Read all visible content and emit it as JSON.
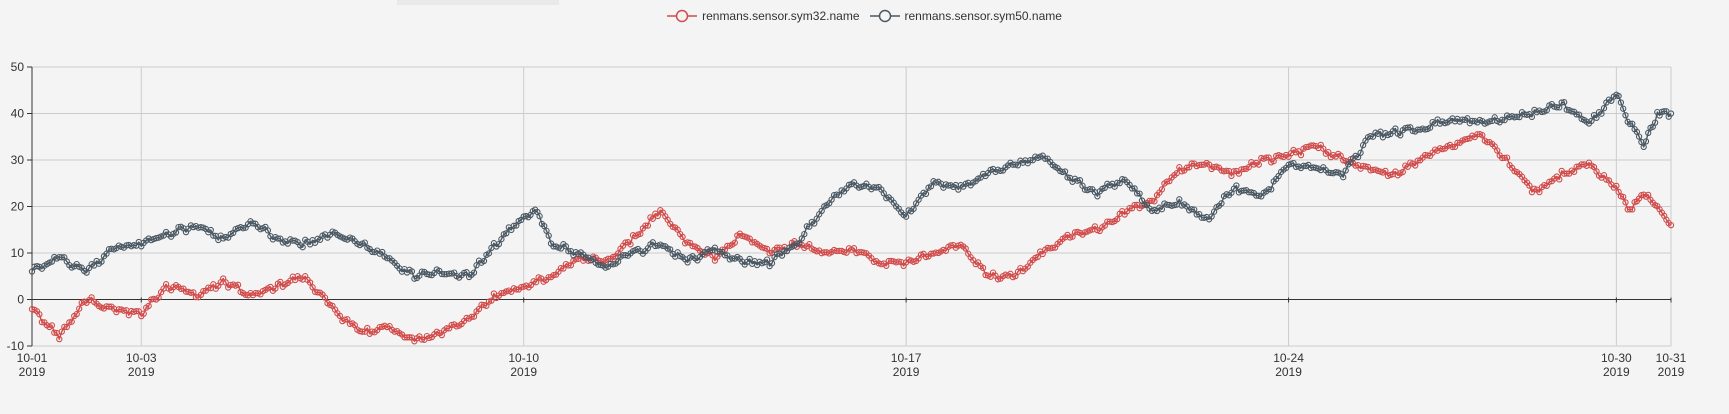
{
  "chart_data": {
    "type": "line",
    "title": "",
    "xlabel": "",
    "ylabel": "",
    "ylim": [
      -10,
      50
    ],
    "y_ticks": [
      "-10",
      "0",
      "10",
      "20",
      "30",
      "40",
      "50"
    ],
    "x_range": [
      "2019-10-01",
      "2019-10-31"
    ],
    "x_ticks": [
      {
        "date": "2019-10-01",
        "label": "10-01",
        "year": "2019"
      },
      {
        "date": "2019-10-03",
        "label": "10-03",
        "year": "2019"
      },
      {
        "date": "2019-10-10",
        "label": "10-10",
        "year": "2019"
      },
      {
        "date": "2019-10-17",
        "label": "10-17",
        "year": "2019"
      },
      {
        "date": "2019-10-24",
        "label": "10-24",
        "year": "2019"
      },
      {
        "date": "2019-10-30",
        "label": "10-30",
        "year": "2019"
      },
      {
        "date": "2019-10-31",
        "label": "10-31",
        "year": "2019"
      }
    ],
    "grid": true,
    "legend_position": "top-center",
    "series": [
      {
        "name": "renmans.sensor.sym32.name",
        "color": "#d14a4a",
        "marker": "circle",
        "points": [
          [
            "2019-10-01",
            -2
          ],
          [
            "2019-10-01T12",
            -8
          ],
          [
            "2019-10-02",
            0
          ],
          [
            "2019-10-02T12",
            -2
          ],
          [
            "2019-10-03",
            -3
          ],
          [
            "2019-10-03T12",
            3
          ],
          [
            "2019-10-04",
            1
          ],
          [
            "2019-10-04T12",
            4
          ],
          [
            "2019-10-05",
            1
          ],
          [
            "2019-10-05T12",
            3
          ],
          [
            "2019-10-06",
            5
          ],
          [
            "2019-10-06T12",
            -2
          ],
          [
            "2019-10-07",
            -7
          ],
          [
            "2019-10-07T12",
            -6
          ],
          [
            "2019-10-08",
            -9
          ],
          [
            "2019-10-08T12",
            -7
          ],
          [
            "2019-10-09",
            -4
          ],
          [
            "2019-10-09T12",
            1
          ],
          [
            "2019-10-10",
            3
          ],
          [
            "2019-10-10T12",
            5
          ],
          [
            "2019-10-11",
            9
          ],
          [
            "2019-10-11T12",
            8
          ],
          [
            "2019-10-12",
            13
          ],
          [
            "2019-10-12T12",
            19
          ],
          [
            "2019-10-13",
            12
          ],
          [
            "2019-10-13T12",
            9
          ],
          [
            "2019-10-14",
            14
          ],
          [
            "2019-10-14T12",
            10
          ],
          [
            "2019-10-15",
            12
          ],
          [
            "2019-10-15T12",
            10
          ],
          [
            "2019-10-16",
            11
          ],
          [
            "2019-10-16T12",
            8
          ],
          [
            "2019-10-17",
            8
          ],
          [
            "2019-10-17T12",
            10
          ],
          [
            "2019-10-18",
            12
          ],
          [
            "2019-10-18T12",
            5
          ],
          [
            "2019-10-19",
            5
          ],
          [
            "2019-10-19T12",
            10
          ],
          [
            "2019-10-20",
            14
          ],
          [
            "2019-10-20T12",
            15
          ],
          [
            "2019-10-21",
            19
          ],
          [
            "2019-10-21T12",
            21
          ],
          [
            "2019-10-22",
            28
          ],
          [
            "2019-10-22T12",
            29
          ],
          [
            "2019-10-23",
            27
          ],
          [
            "2019-10-23T12",
            30
          ],
          [
            "2019-10-24",
            31
          ],
          [
            "2019-10-24T12",
            33
          ],
          [
            "2019-10-25",
            30
          ],
          [
            "2019-10-25T12",
            28
          ],
          [
            "2019-10-26",
            27
          ],
          [
            "2019-10-26T12",
            31
          ],
          [
            "2019-10-27",
            33
          ],
          [
            "2019-10-27T12",
            36
          ],
          [
            "2019-10-28",
            30
          ],
          [
            "2019-10-28T12",
            23
          ],
          [
            "2019-10-29",
            27
          ],
          [
            "2019-10-29T12",
            29
          ],
          [
            "2019-10-30",
            24
          ],
          [
            "2019-10-30T06",
            19
          ],
          [
            "2019-10-30T12",
            23
          ],
          [
            "2019-10-30T18",
            20
          ],
          [
            "2019-10-31",
            16
          ]
        ]
      },
      {
        "name": "renmans.sensor.sym50.name",
        "color": "#4a5863",
        "marker": "circle",
        "points": [
          [
            "2019-10-01",
            6
          ],
          [
            "2019-10-01T12",
            9
          ],
          [
            "2019-10-02",
            6
          ],
          [
            "2019-10-02T12",
            11
          ],
          [
            "2019-10-03",
            12
          ],
          [
            "2019-10-03T12",
            14
          ],
          [
            "2019-10-04",
            16
          ],
          [
            "2019-10-04T12",
            13
          ],
          [
            "2019-10-05",
            17
          ],
          [
            "2019-10-05T12",
            13
          ],
          [
            "2019-10-06",
            12
          ],
          [
            "2019-10-06T12",
            14
          ],
          [
            "2019-10-07",
            12
          ],
          [
            "2019-10-07T12",
            9
          ],
          [
            "2019-10-08",
            5
          ],
          [
            "2019-10-08T12",
            6
          ],
          [
            "2019-10-09",
            5
          ],
          [
            "2019-10-09T12",
            12
          ],
          [
            "2019-10-10",
            18
          ],
          [
            "2019-10-10T06",
            19
          ],
          [
            "2019-10-10T12",
            12
          ],
          [
            "2019-10-11",
            10
          ],
          [
            "2019-10-11T12",
            7
          ],
          [
            "2019-10-12",
            10
          ],
          [
            "2019-10-12T12",
            12
          ],
          [
            "2019-10-13",
            8
          ],
          [
            "2019-10-13T12",
            11
          ],
          [
            "2019-10-14",
            8
          ],
          [
            "2019-10-14T12",
            8
          ],
          [
            "2019-10-15",
            12
          ],
          [
            "2019-10-15T12",
            20
          ],
          [
            "2019-10-16",
            25
          ],
          [
            "2019-10-16T12",
            24
          ],
          [
            "2019-10-17",
            18
          ],
          [
            "2019-10-17T12",
            25
          ],
          [
            "2019-10-18",
            24
          ],
          [
            "2019-10-18T12",
            27
          ],
          [
            "2019-10-19",
            29
          ],
          [
            "2019-10-19T12",
            31
          ],
          [
            "2019-10-20",
            26
          ],
          [
            "2019-10-20T12",
            23
          ],
          [
            "2019-10-21",
            26
          ],
          [
            "2019-10-21T12",
            19
          ],
          [
            "2019-10-22",
            21
          ],
          [
            "2019-10-22T12",
            17
          ],
          [
            "2019-10-23",
            24
          ],
          [
            "2019-10-23T12",
            22
          ],
          [
            "2019-10-24",
            29
          ],
          [
            "2019-10-24T12",
            28
          ],
          [
            "2019-10-25",
            27
          ],
          [
            "2019-10-25T12",
            35
          ],
          [
            "2019-10-26",
            36
          ],
          [
            "2019-10-26T12",
            37
          ],
          [
            "2019-10-27",
            39
          ],
          [
            "2019-10-27T12",
            38
          ],
          [
            "2019-10-28",
            39
          ],
          [
            "2019-10-28T12",
            40
          ],
          [
            "2019-10-29",
            42
          ],
          [
            "2019-10-29T12",
            38
          ],
          [
            "2019-10-30",
            44
          ],
          [
            "2019-10-30T06",
            38
          ],
          [
            "2019-10-30T12",
            33
          ],
          [
            "2019-10-30T18",
            40
          ],
          [
            "2019-10-31",
            40
          ]
        ]
      }
    ]
  }
}
